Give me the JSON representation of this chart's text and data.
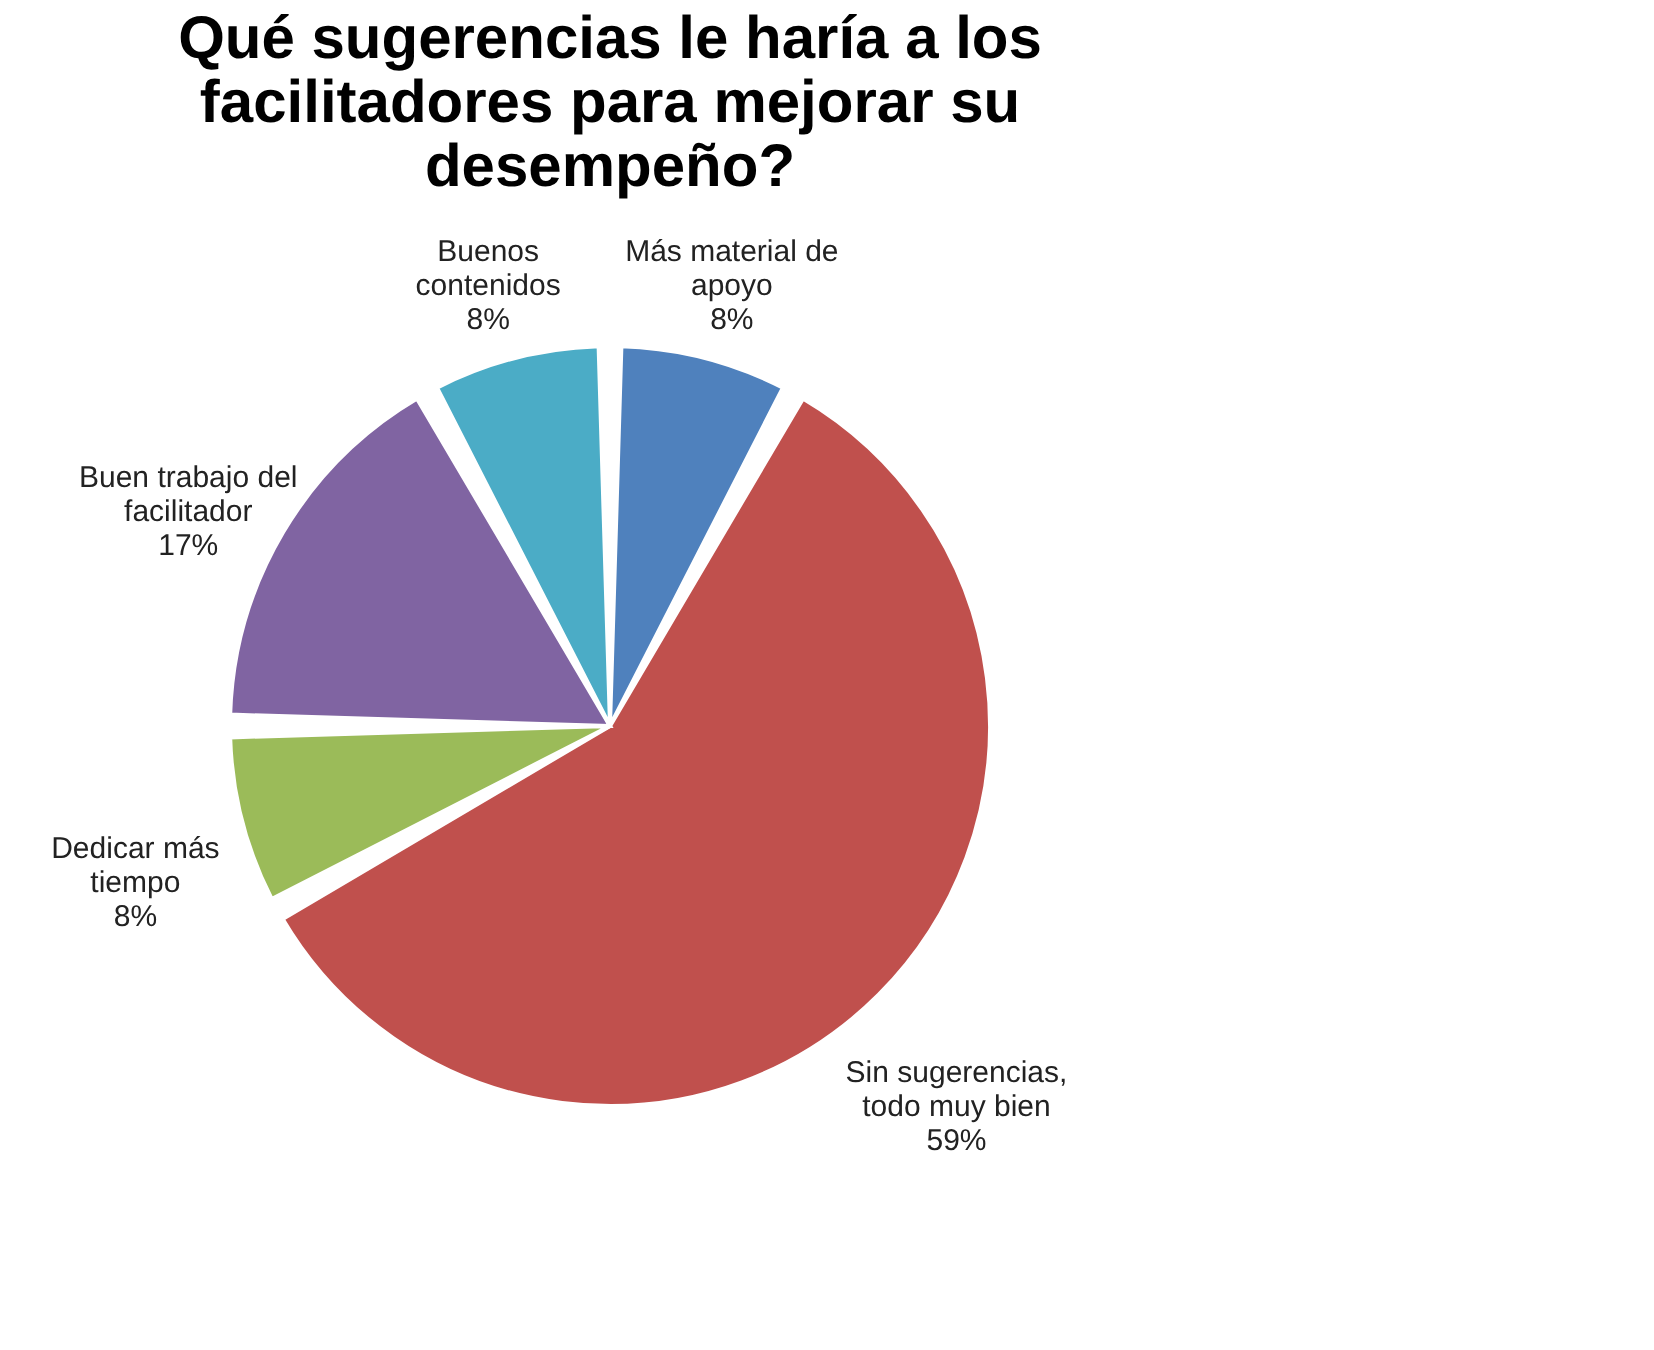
{
  "chart_data": {
    "type": "pie",
    "title": "Qué sugerencias le haría a los facilitadores para mejorar su desempeño?",
    "categories": [
      "Más material de apoyo",
      "Sin sugerencias, todo muy bien",
      "Dedicar más tiempo",
      "Buen trabajo del facilitador",
      "Buenos contenidos"
    ],
    "values": [
      8,
      59,
      8,
      17,
      8
    ],
    "value_labels": [
      "8%",
      "59%",
      "8%",
      "17%",
      "8%"
    ],
    "colors": [
      "#4f81bd",
      "#c0504d",
      "#9bbb59",
      "#8064a2",
      "#4bacc6"
    ]
  }
}
